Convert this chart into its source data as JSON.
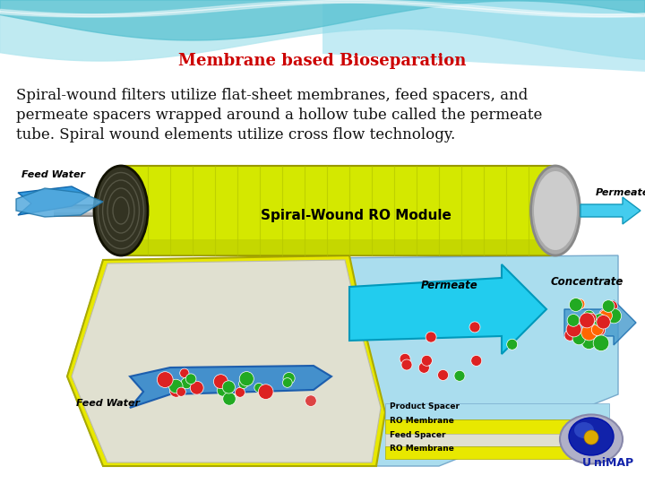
{
  "title": "Membrane based Bioseparation",
  "title_color": "#cc0000",
  "title_fontsize": 13,
  "body_text_line1": "Spiral-wound filters utilize flat-sheet membranes, feed spacers, and",
  "body_text_line2": "permeate spacers wrapped around a hollow tube called the permeate",
  "body_text_line3": "tube. Spiral wound elements utilize cross flow technology.",
  "body_fontsize": 12,
  "body_color": "#111111",
  "bg_top_color": "#c8edf5",
  "bg_bottom_color": "#ffffff",
  "wave_color": "#5cc8d8",
  "cyl_body_color": "#d8e800",
  "cyl_dark_color": "#b8c800",
  "cyl_left_cap_color": "#555544",
  "cyl_right_cap_color": "#888877",
  "shaft_color": "#aaaaaa",
  "blue_sheet_color": "#99ccee",
  "yellow_layer_color": "#e8e800",
  "white_layer_color": "#e8e8d8",
  "feed_arrow_color": "#3388cc",
  "permeate_arrow_color": "#44bbdd",
  "concentrate_arrow_color": "#3388cc",
  "layer_bg_blue": "#aaddee",
  "layer_yellow": "#dddd00",
  "layer_white": "#ddddcc",
  "ball_red": "#dd2222",
  "ball_green": "#22aa22",
  "logo_blue": "#1122aa",
  "logo_silver": "#aaaacc"
}
